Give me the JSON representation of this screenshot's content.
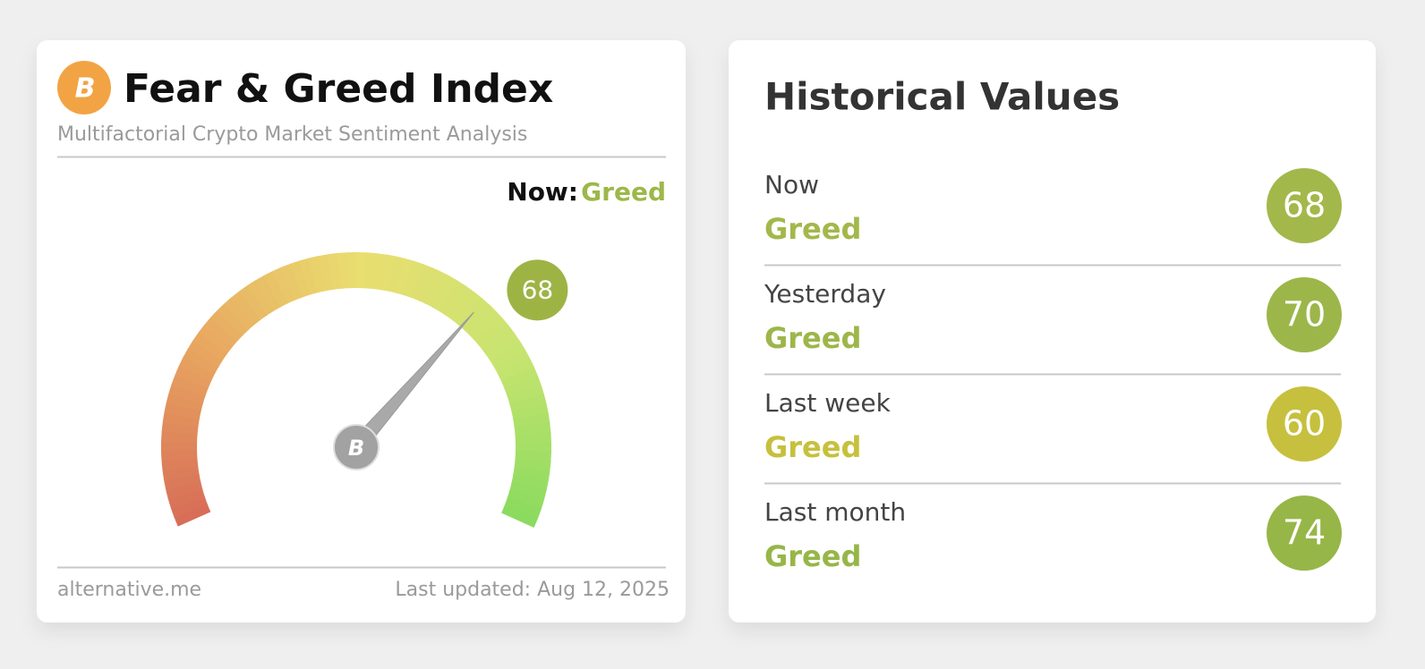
{
  "gauge_card": {
    "title": "Fear & Greed Index",
    "subtitle": "Multifactorial Crypto Market Sentiment Analysis",
    "now_label": "Now:",
    "now_status": "Greed",
    "status_color": "#9cb848",
    "value": 68,
    "value_color": "#9db445",
    "footer_left": "alternative.me",
    "footer_right": "Last updated: Aug 12, 2025"
  },
  "history": {
    "title": "Historical Values",
    "rows": [
      {
        "label": "Now",
        "status": "Greed",
        "value": 68,
        "color": "#a2b84b"
      },
      {
        "label": "Yesterday",
        "status": "Greed",
        "value": 70,
        "color": "#9db64a"
      },
      {
        "label": "Last week",
        "status": "Greed",
        "value": 60,
        "color": "#c6c03e"
      },
      {
        "label": "Last month",
        "status": "Greed",
        "value": 74,
        "color": "#97b648"
      }
    ]
  }
}
